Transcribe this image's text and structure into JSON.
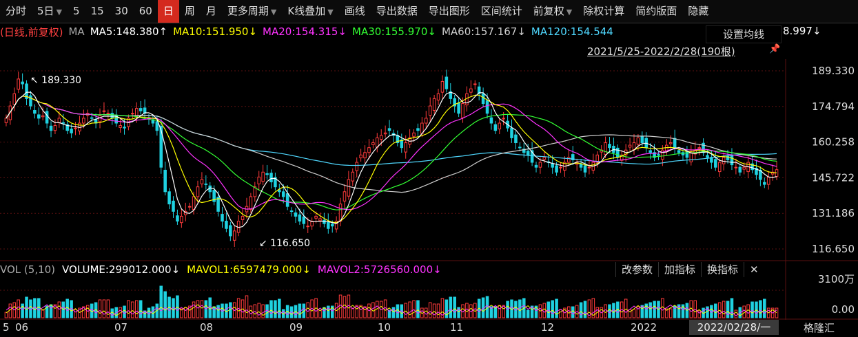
{
  "toolbar": {
    "items": [
      "分时",
      "5日",
      "5",
      "15",
      "30",
      "60",
      "日",
      "周",
      "月",
      "更多周期",
      "K线叠加",
      "画线",
      "导出数据",
      "导出图形",
      "区间统计",
      "前复权",
      "除权计算",
      "简约版面",
      "隐藏"
    ],
    "active": "日"
  },
  "ma_bar": {
    "mode": "(日线,前复权)",
    "ma_label": "MA",
    "ma5": "MA5:148.380↑",
    "ma10": "MA10:151.950↓",
    "ma20": "MA20:154.315↓",
    "ma30": "MA30:155.970↓",
    "ma60": "MA60:157.167↓",
    "ma120": "MA120:154.544",
    "extra": "8.997↓",
    "set_ma": "设置均线"
  },
  "range": "2021/5/25-2022/2/28(190根)",
  "price_axis": [
    "189.330",
    "174.794",
    "160.258",
    "145.722",
    "131.186",
    "116.650"
  ],
  "annotations": {
    "high": "189.330",
    "low": "116.650"
  },
  "vol_bar": {
    "label": "VOL (5,10)",
    "volume": "VOLUME:299012.000↓",
    "mavol1": "MAVOL1:6597479.000↓",
    "mavol2": "MAVOL2:5726560.000↓"
  },
  "vol_buttons": [
    "改参数",
    "加指标",
    "换指标",
    "✕"
  ],
  "vol_axis": [
    "3100万",
    "0.00"
  ],
  "x_axis": [
    "5",
    "06",
    "07",
    "08",
    "09",
    "10",
    "11",
    "12",
    "2022"
  ],
  "x_date": "2022/02/28/一",
  "logo": "格隆汇",
  "colors": {
    "up": "#ff3b3b",
    "down": "#1fd1e0",
    "ma5": "#ffffff",
    "ma10": "#ffff00",
    "ma20": "#ff33ff",
    "ma30": "#33ff33",
    "ma60": "#cfcfcf",
    "ma120": "#4fd8ff"
  },
  "chart_data": {
    "type": "candlestick",
    "ylim": [
      116.65,
      189.33
    ],
    "closes": [
      170,
      175,
      180,
      186,
      184,
      178,
      175,
      172,
      170,
      171,
      168,
      165,
      167,
      170,
      168,
      165,
      164,
      166,
      168,
      170,
      172,
      170,
      168,
      171,
      173,
      172,
      170,
      168,
      167,
      166,
      170,
      172,
      174,
      173,
      172,
      170,
      168,
      165,
      150,
      140,
      135,
      132,
      128,
      130,
      132,
      134,
      138,
      142,
      145,
      143,
      140,
      136,
      132,
      128,
      125,
      122,
      124,
      128,
      130,
      134,
      138,
      142,
      146,
      148,
      147,
      144,
      142,
      140,
      138,
      134,
      132,
      130,
      128,
      127,
      126,
      128,
      130,
      129,
      127,
      125,
      126,
      128,
      135,
      140,
      145,
      148,
      152,
      155,
      156,
      158,
      160,
      162,
      163,
      164,
      165,
      163,
      160,
      158,
      160,
      162,
      164,
      165,
      168,
      170,
      175,
      178,
      180,
      185,
      182,
      178,
      175,
      172,
      176,
      180,
      182,
      184,
      180,
      176,
      172,
      168,
      165,
      168,
      170,
      166,
      162,
      160,
      158,
      156,
      155,
      152,
      150,
      152,
      154,
      152,
      150,
      148,
      150,
      152,
      154,
      153,
      152,
      150,
      148,
      150,
      152,
      155,
      157,
      160,
      158,
      156,
      154,
      155,
      157,
      159,
      160,
      162,
      160,
      158,
      156,
      154,
      155,
      157,
      159,
      160,
      158,
      156,
      155,
      154,
      156,
      157,
      158,
      156,
      154,
      152,
      150,
      152,
      154,
      153,
      151,
      150,
      148,
      150,
      152,
      149,
      147,
      145,
      143,
      146,
      148,
      149
    ]
  }
}
